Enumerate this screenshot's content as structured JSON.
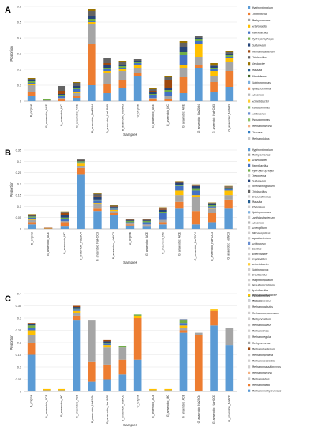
{
  "colors": {
    "Hyphomicrobium": "#5b9bd5",
    "Thermincola": "#ed7d31",
    "Methylomonas": "#a5a5a5",
    "Arthrobacter": "#ffc000",
    "Paenibacillus": "#4472c4",
    "Hydrogenophaga": "#70ad47",
    "Sulfurovum": "#264478",
    "Methanobacterium": "#9e480e",
    "Thiobacillus": "#636363",
    "Geobacter": "#997300",
    "Massilia": "#255e91",
    "Rhodoferax": "#43682b",
    "Sphingomonas": "#7cafdd",
    "Ignatzschineria": "#f1975a",
    "Azoarcus": "#b7b7b7",
    "Acinetobacter": "#ffcd33",
    "Acidovorax": "#698ed0",
    "Pseudomonas": "#8cc168",
    "Thauera": "#327dc2",
    "Methanosarcina": "#f4b183",
    "Methanolobus": "#c9c9c9",
    "Methanomethylovorans": "#5b9bd5",
    "Methanosaeta": "#ed7d31",
    "Methanobrevibacter": "#ffc000",
    "Other": "#d0cece"
  },
  "chart_data": [
    {
      "type": "bar",
      "panel_label": "A",
      "xlabel": "Samples",
      "ylabel": "Proportion",
      "ylim": [
        0,
        0.6
      ],
      "yticks": [
        "0",
        "0.1",
        "0.2",
        "0.3",
        "0.4",
        "0.5",
        "0.6"
      ],
      "categories": [
        "B_original",
        "B_anaerobic_ACE",
        "B_anaerobic_MC",
        "B_anaerobic_ACE",
        "B_anaerobic_Na2SO4",
        "B_anaerobic_NaHCO3",
        "B_anaerobic_NaNO3",
        "G_original",
        "G_anaerobic_ACE",
        "G_anaerobic_MC",
        "G_anaerobic_ACE",
        "G_anaerobic_Na2SO4",
        "G_anaerobic_NaHCO3",
        "G_anaerobic_NaNO3"
      ],
      "legend": [
        "Hyphomicrobium",
        "Thermincola",
        "Methylomonas",
        "Arthrobacter",
        "Paenibacillus",
        "Hydrogenophaga",
        "Sulfurovum",
        "Methanobacterium",
        "Thiobacillus",
        "Geobacter",
        "Massilia",
        "Rhodoferax",
        "Sphingomonas",
        "Ignatzschineria",
        "Azoarcus",
        "Acinetobacter",
        "Pseudomonas",
        "Acidovorax",
        "Pseudomonas",
        "Methanosarcina",
        "Thauera",
        "Methanolobus"
      ],
      "series": [
        {
          "name": "Hyphomicrobium",
          "color": "#5b9bd5",
          "values": [
            0.03,
            0.0,
            0.0,
            0.02,
            0.1,
            0.05,
            0.08,
            0.16,
            0.0,
            0.0,
            0.05,
            0.21,
            0.06,
            0.09
          ]
        },
        {
          "name": "Thermincola",
          "color": "#ed7d31",
          "values": [
            0.03,
            0.0,
            0.01,
            0.01,
            0.26,
            0.06,
            0.05,
            0.02,
            0.01,
            0.01,
            0.1,
            0.02,
            0.06,
            0.1
          ]
        },
        {
          "name": "Methylomonas",
          "color": "#a5a5a5",
          "values": [
            0.04,
            0.005,
            0.01,
            0.02,
            0.13,
            0.07,
            0.06,
            0.03,
            0.01,
            0.02,
            0.06,
            0.05,
            0.04,
            0.06
          ]
        },
        {
          "name": "Arthrobacter",
          "color": "#ffc000",
          "values": [
            0.005,
            0.0,
            0.0,
            0.005,
            0.01,
            0.01,
            0.01,
            0.02,
            0.0,
            0.0,
            0.02,
            0.08,
            0.03,
            0.02
          ]
        },
        {
          "name": "Paenibacillus",
          "color": "#4472c4",
          "values": [
            0.01,
            0.0,
            0.01,
            0.02,
            0.01,
            0.01,
            0.01,
            0.01,
            0.02,
            0.03,
            0.06,
            0.02,
            0.01,
            0.01
          ]
        },
        {
          "name": "Hydrogenophaga",
          "color": "#70ad47",
          "values": [
            0.01,
            0.005,
            0.005,
            0.01,
            0.01,
            0.01,
            0.01,
            0.01,
            0.005,
            0.01,
            0.02,
            0.01,
            0.01,
            0.01
          ]
        },
        {
          "name": "Sulfurovum",
          "color": "#264478",
          "values": [
            0.005,
            0.0,
            0.01,
            0.01,
            0.02,
            0.02,
            0.01,
            0.005,
            0.01,
            0.01,
            0.03,
            0.01,
            0.01,
            0.01
          ]
        },
        {
          "name": "Methanobacterium",
          "color": "#9e480e",
          "values": [
            0.0,
            0.0,
            0.02,
            0.0,
            0.0,
            0.01,
            0.0,
            0.0,
            0.01,
            0.05,
            0.0,
            0.0,
            0.0,
            0.0
          ]
        },
        {
          "name": "Thiobacillus",
          "color": "#636363",
          "values": [
            0.01,
            0.005,
            0.03,
            0.02,
            0.03,
            0.03,
            0.02,
            0.01,
            0.01,
            0.02,
            0.03,
            0.01,
            0.01,
            0.01
          ]
        },
        {
          "name": "Geobacter",
          "color": "#997300",
          "values": [
            0.005,
            0.0,
            0.0,
            0.005,
            0.01,
            0.005,
            0.005,
            0.0,
            0.005,
            0.01,
            0.01,
            0.005,
            0.01,
            0.005
          ]
        }
      ]
    },
    {
      "type": "bar",
      "panel_label": "B",
      "xlabel": "Samples",
      "ylabel": "Proportion",
      "ylim": [
        0,
        0.35
      ],
      "yticks": [
        "0",
        "0.05",
        "0.1",
        "0.15",
        "0.2",
        "0.25",
        "0.3",
        "0.35"
      ],
      "categories": [
        "B_original",
        "B_anaerobic_ACE",
        "B_anaerobic_MC",
        "B_anaerobic_Na2SO4",
        "B_anaerobic_NaHCO3",
        "B_anaerobic_NaNO3",
        "G_original",
        "G_anaerobic_ACE",
        "G_anaerobic_MC",
        "G_anaerobic_ACE",
        "G_anaerobic_Na2SO4",
        "G_anaerobic_NaHCO3",
        "G_anaerobic_NaNO3"
      ],
      "legend": [
        "Hyphomicrobium",
        "Methylomonas",
        "Arthrobacter",
        "Paenibacillus",
        "Hydrogenophaga",
        "Treponema",
        "Sulfurovum",
        "Novosphingobium",
        "Thiobacillus",
        "Brevundimonas",
        "Massilia",
        "Rhizobium",
        "Sphingomonas",
        "Janthinobacterium",
        "Azoarcus",
        "Acreoplitum",
        "Nitrosospirillus",
        "Aquabacterium",
        "Acidovorax",
        "Bacillus",
        "Enterobacter",
        "Cupriavidus",
        "Acinetobacter",
        "Sphingopyxis",
        "Brevibacillus",
        "Magnetospirillum",
        "Desulfomicrobium",
        "Lysinibacillus",
        "Pseudomonas",
        "Thauera"
      ],
      "series": [
        {
          "name": "Hyphomicrobium",
          "color": "#5b9bd5",
          "values": [
            0.02,
            0.0,
            0.01,
            0.24,
            0.08,
            0.06,
            0.015,
            0.01,
            0.02,
            0.09,
            0.02,
            0.03,
            0.09
          ]
        },
        {
          "name": "Methylomonas",
          "color": "#ed7d31",
          "values": [
            0.01,
            0.002,
            0.02,
            0.03,
            0.01,
            0.01,
            0.005,
            0.005,
            0.01,
            0.03,
            0.06,
            0.04,
            0.04
          ]
        },
        {
          "name": "Arthrobacter",
          "color": "#a5a5a5",
          "values": [
            0.01,
            0.0,
            0.005,
            0.01,
            0.02,
            0.01,
            0.005,
            0.005,
            0.01,
            0.03,
            0.06,
            0.02,
            0.02
          ]
        },
        {
          "name": "Paenibacillus",
          "color": "#ffc000",
          "values": [
            0.005,
            0.0,
            0.0,
            0.01,
            0.005,
            0.005,
            0.0,
            0.0,
            0.0,
            0.02,
            0.01,
            0.005,
            0.02
          ]
        },
        {
          "name": "Hydrogenophaga",
          "color": "#4472c4",
          "values": [
            0.005,
            0.0,
            0.01,
            0.005,
            0.01,
            0.005,
            0.005,
            0.01,
            0.03,
            0.02,
            0.02,
            0.005,
            0.005
          ]
        },
        {
          "name": "Treponema",
          "color": "#70ad47",
          "values": [
            0.005,
            0.001,
            0.005,
            0.005,
            0.005,
            0.005,
            0.005,
            0.005,
            0.005,
            0.005,
            0.01,
            0.005,
            0.005
          ]
        },
        {
          "name": "Sulfurovum",
          "color": "#264478",
          "values": [
            0.003,
            0.0,
            0.01,
            0.003,
            0.01,
            0.003,
            0.003,
            0.003,
            0.01,
            0.01,
            0.01,
            0.005,
            0.003
          ]
        },
        {
          "name": "Novosphingobium",
          "color": "#9e480e",
          "values": [
            0.002,
            0.002,
            0.01,
            0.002,
            0.005,
            0.002,
            0.002,
            0.002,
            0.005,
            0.002,
            0.002,
            0.002,
            0.002
          ]
        },
        {
          "name": "Thiobacillus",
          "color": "#636363",
          "values": [
            0.003,
            0.0,
            0.003,
            0.003,
            0.01,
            0.003,
            0.003,
            0.003,
            0.003,
            0.003,
            0.003,
            0.003,
            0.003
          ]
        },
        {
          "name": "Brevundimonas",
          "color": "#997300",
          "values": [
            0.002,
            0.0,
            0.005,
            0.002,
            0.005,
            0.002,
            0.002,
            0.002,
            0.003,
            0.002,
            0.002,
            0.002,
            0.002
          ]
        }
      ]
    },
    {
      "type": "bar",
      "panel_label": "C",
      "xlabel": "Samples",
      "ylabel": "Proportion",
      "ylim": [
        0,
        0.4
      ],
      "yticks": [
        "0",
        "0.05",
        "0.1",
        "0.15",
        "0.2",
        "0.25",
        "0.3",
        "0.35",
        "0.4"
      ],
      "categories": [
        "B_original",
        "B_anaerobic_ACE",
        "B_anaerobic_MC",
        "B_anaerobic_ACE",
        "B_anaerobic_Na2SO4",
        "B_anaerobic_NaHCO3",
        "B_anaerobic_NaNO3",
        "G_original",
        "G_anaerobic_ACE",
        "G_anaerobic_MC",
        "G_anaerobic_ACE",
        "G_anaerobic_Na2SO4",
        "G_anaerobic_NaHCO3",
        "G_anaerobic_NaNO3"
      ],
      "legend": [
        "Methanobrevibacter",
        "Methanococcus",
        "Methanocalculus",
        "Methanocorpusculum",
        "Methylocaldum",
        "Methanoculleus",
        "Methanolinea",
        "Methanoregula",
        "Methylomonas",
        "Methanobacterium",
        "Methanosphaera",
        "Methanococcoides",
        "Methanomassiliicoccus",
        "Methanosarcina",
        "Methanolobus",
        "Methanosaeta",
        "Methanomethylovorans"
      ],
      "series": [
        {
          "name": "Methanomethylovorans",
          "color": "#5b9bd5",
          "values": [
            0.15,
            0.0,
            0.0,
            0.29,
            0.04,
            0.05,
            0.07,
            0.13,
            0.0,
            0.0,
            0.24,
            0.0,
            0.27,
            0.19
          ]
        },
        {
          "name": "Methanosaeta",
          "color": "#ed7d31",
          "values": [
            0.05,
            0.0,
            0.0,
            0.02,
            0.08,
            0.06,
            0.06,
            0.17,
            0.0,
            0.0,
            0.01,
            0.23,
            0.06,
            0.0
          ]
        },
        {
          "name": "Methanolobus",
          "color": "#a5a5a5",
          "values": [
            0.03,
            0.005,
            0.005,
            0.01,
            0.17,
            0.07,
            0.05,
            0.0,
            0.005,
            0.005,
            0.01,
            0.01,
            0.0,
            0.07
          ]
        },
        {
          "name": "Methanosarcina",
          "color": "#ffc000",
          "values": [
            0.02,
            0.005,
            0.005,
            0.01,
            0.0,
            0.01,
            0.0,
            0.01,
            0.005,
            0.005,
            0.01,
            0.0,
            0.005,
            0.0
          ]
        },
        {
          "name": "Methanomassiliicoccus",
          "color": "#4472c4",
          "values": [
            0.01,
            0.0,
            0.0,
            0.005,
            0.0,
            0.005,
            0.0,
            0.0,
            0.0,
            0.0,
            0.01,
            0.0,
            0.0,
            0.0
          ]
        },
        {
          "name": "Methanococcoides",
          "color": "#70ad47",
          "values": [
            0.01,
            0.0,
            0.0,
            0.005,
            0.0,
            0.005,
            0.005,
            0.005,
            0.0,
            0.0,
            0.01,
            0.0,
            0.0,
            0.0
          ]
        },
        {
          "name": "Methanosphaera",
          "color": "#264478",
          "values": [
            0.005,
            0.0,
            0.0,
            0.005,
            0.0,
            0.005,
            0.0,
            0.0,
            0.0,
            0.0,
            0.005,
            0.0,
            0.0,
            0.0
          ]
        },
        {
          "name": "Methanobacterium",
          "color": "#9e480e",
          "values": [
            0.005,
            0.0,
            0.0,
            0.005,
            0.0,
            0.005,
            0.0,
            0.0,
            0.0,
            0.0,
            0.0,
            0.0,
            0.0,
            0.0
          ]
        }
      ]
    }
  ]
}
